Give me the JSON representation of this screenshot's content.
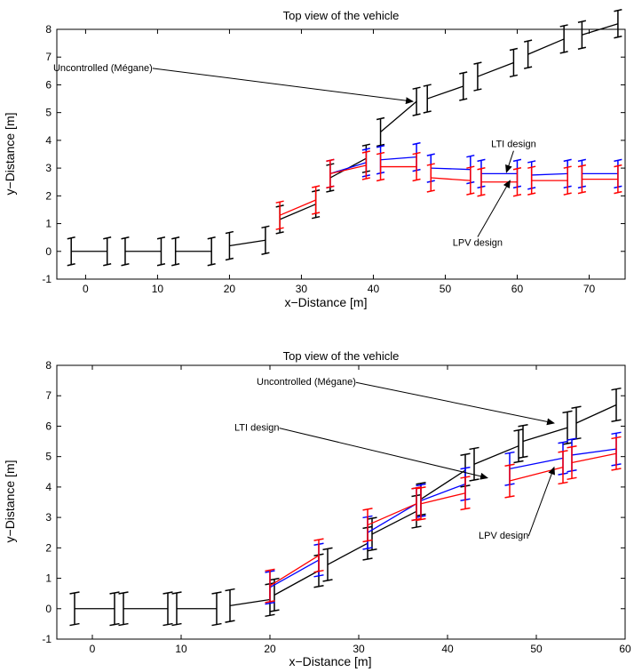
{
  "chart_data": [
    {
      "type": "line",
      "title": "Top view of the vehicle",
      "xlabel": "x−Distance [m]",
      "ylabel": "y−Distance [m]",
      "xlim": [
        -4,
        75
      ],
      "ylim": [
        -1,
        8
      ],
      "xticks": [
        0,
        10,
        20,
        30,
        40,
        50,
        60,
        70
      ],
      "yticks": [
        -1,
        0,
        1,
        2,
        3,
        4,
        5,
        6,
        7,
        8
      ],
      "grid": false,
      "colors": {
        "Uncontrolled (Mégane)": "#000000",
        "LTI design": "#0000ff",
        "LPV design": "#ff0000"
      },
      "series": [
        {
          "name": "Uncontrolled (Mégane)",
          "x": [
            -2,
            3,
            5.5,
            10.5,
            12.5,
            17.5,
            20,
            25,
            27,
            32,
            34,
            39,
            41,
            46,
            47.5,
            52.5,
            54.5,
            59.5,
            61.5,
            66.5,
            69,
            74
          ],
          "y": [
            0,
            0,
            0,
            0,
            0,
            0,
            0.2,
            0.4,
            1.15,
            1.7,
            2.65,
            3.35,
            4.3,
            5.4,
            5.5,
            5.95,
            6.3,
            6.8,
            7.1,
            7.65,
            7.8,
            8.2
          ],
          "halfwidth": 0.48
        },
        {
          "name": "LTI design",
          "x": [
            34,
            39,
            41,
            46,
            48,
            53.5,
            55,
            60,
            62,
            67,
            69,
            74
          ],
          "y": [
            2.8,
            3.2,
            3.3,
            3.4,
            3.0,
            2.95,
            2.8,
            2.8,
            2.75,
            2.8,
            2.8,
            2.8
          ],
          "halfwidth": 0.48
        },
        {
          "name": "LPV design",
          "x": [
            27,
            32,
            34,
            39,
            41,
            46,
            48,
            53.5,
            55,
            60,
            62,
            67,
            69,
            74
          ],
          "y": [
            1.3,
            1.85,
            2.8,
            3.1,
            3.05,
            3.05,
            2.65,
            2.55,
            2.5,
            2.5,
            2.55,
            2.55,
            2.6,
            2.6
          ],
          "halfwidth": 0.48
        }
      ],
      "annotations": [
        {
          "text": "Uncontrolled (Mégane)",
          "text_at": [
            -4.5,
            6.5
          ],
          "arrow_to": [
            45.5,
            5.4
          ],
          "align": "start"
        },
        {
          "text": "LTI design",
          "text_at": [
            59.5,
            3.75
          ],
          "arrow_to": [
            58.5,
            2.85
          ],
          "align": "middle"
        },
        {
          "text": "LPV design",
          "text_at": [
            54.5,
            0.2
          ],
          "arrow_to": [
            59,
            2.55
          ],
          "align": "middle"
        }
      ]
    },
    {
      "type": "line",
      "title": "Top view of the vehicle",
      "xlabel": "x−Distance [m]",
      "ylabel": "y−Distance [m]",
      "xlim": [
        -4,
        60
      ],
      "ylim": [
        -1,
        8
      ],
      "xticks": [
        0,
        10,
        20,
        30,
        40,
        50,
        60
      ],
      "yticks": [
        -1,
        0,
        1,
        2,
        3,
        4,
        5,
        6,
        7,
        8
      ],
      "grid": false,
      "colors": {
        "Uncontrolled (Mégane)": "#000000",
        "LTI design": "#0000ff",
        "LPV design": "#ff0000"
      },
      "series": [
        {
          "name": "Uncontrolled (Mégane)",
          "x": [
            -2,
            2.5,
            3.5,
            8.5,
            9.5,
            14,
            15.5,
            20,
            20.5,
            25.5,
            26.5,
            31,
            31.5,
            36.5,
            37,
            42,
            43,
            48,
            48.5,
            53.5,
            54.5,
            59
          ],
          "y": [
            0,
            0,
            0,
            0,
            0,
            0,
            0.1,
            0.3,
            0.45,
            1.25,
            1.45,
            2.15,
            2.45,
            3.2,
            3.6,
            4.55,
            4.75,
            5.35,
            5.5,
            5.95,
            6.1,
            6.7
          ],
          "halfwidth": 0.52
        },
        {
          "name": "LTI design",
          "x": [
            20,
            25.5,
            31,
            36.5,
            37,
            42,
            47,
            53,
            54,
            59
          ],
          "y": [
            0.7,
            1.6,
            2.5,
            3.45,
            3.55,
            4.1,
            4.6,
            4.95,
            5.05,
            5.25
          ],
          "halfwidth": 0.52
        },
        {
          "name": "LPV design",
          "x": [
            20,
            25.5,
            31,
            36.5,
            37,
            42,
            47,
            53,
            54,
            59
          ],
          "y": [
            0.75,
            1.75,
            2.75,
            3.45,
            3.45,
            3.8,
            4.2,
            4.65,
            4.8,
            5.1
          ],
          "halfwidth": 0.52
        }
      ],
      "annotations": [
        {
          "text": "Uncontrolled (Mégane)",
          "text_at": [
            18.5,
            7.35
          ],
          "arrow_to": [
            52,
            6.1
          ],
          "align": "start"
        },
        {
          "text": "LTI design",
          "text_at": [
            16,
            5.85
          ],
          "arrow_to": [
            44.5,
            4.3
          ],
          "align": "start"
        },
        {
          "text": "LPV design",
          "text_at": [
            43.5,
            2.3
          ],
          "arrow_to": [
            52,
            4.65
          ],
          "align": "start"
        }
      ]
    }
  ]
}
